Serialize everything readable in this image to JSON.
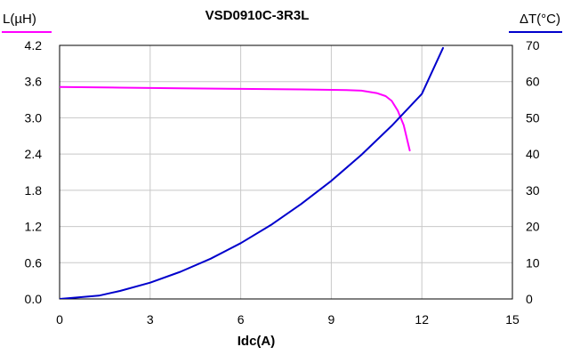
{
  "chart_data": {
    "type": "line",
    "title": "VSD0910C-3R3L",
    "xlabel": "Idc(A)",
    "ylabel_left": "L(µH)",
    "ylabel_right": "ΔT(°C)",
    "xlim": [
      0,
      15
    ],
    "ylim_left": [
      0.0,
      4.2
    ],
    "ylim_right": [
      0,
      70
    ],
    "x_ticks": [
      "0",
      "3",
      "6",
      "9",
      "12",
      "15"
    ],
    "y_left_ticks": [
      "0.0",
      "0.6",
      "1.2",
      "1.8",
      "2.4",
      "3.0",
      "3.6",
      "4.2"
    ],
    "y_right_ticks": [
      "0",
      "10",
      "20",
      "30",
      "40",
      "50",
      "60",
      "70"
    ],
    "grid": true,
    "series": [
      {
        "axis": "left",
        "color": "#ff00ff",
        "x": [
          0,
          2,
          4,
          6,
          8,
          9.5,
          10.0,
          10.5,
          10.8,
          11.0,
          11.2,
          11.4,
          11.6
        ],
        "values": [
          3.51,
          3.5,
          3.49,
          3.48,
          3.47,
          3.46,
          3.45,
          3.41,
          3.36,
          3.28,
          3.12,
          2.88,
          2.46
        ]
      },
      {
        "axis": "right",
        "color": "#0000cc",
        "x": [
          0,
          1.3,
          2,
          3,
          4,
          5,
          6,
          7,
          8,
          9,
          10,
          11,
          12,
          12.7
        ],
        "values": [
          0,
          0.9,
          2.2,
          4.5,
          7.5,
          11.1,
          15.4,
          20.4,
          26.2,
          32.6,
          39.8,
          47.8,
          56.6,
          69.3
        ]
      }
    ]
  }
}
